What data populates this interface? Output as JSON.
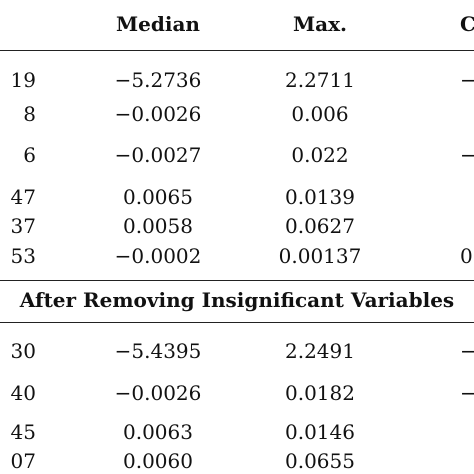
{
  "table": {
    "headers": {
      "median": "Median",
      "max": "Max.",
      "right_partial": "C"
    },
    "section1_rows": [
      {
        "left": "19",
        "median": "−5.2736",
        "max": "2.2711",
        "right": "−"
      },
      {
        "left": "8",
        "median": "−0.0026",
        "max": "0.006",
        "right": ""
      },
      {
        "left": "6",
        "median": "−0.0027",
        "max": "0.022",
        "right": "−"
      },
      {
        "left": "47",
        "median": "0.0065",
        "max": "0.0139",
        "right": ""
      },
      {
        "left": "37",
        "median": "0.0058",
        "max": "0.0627",
        "right": ""
      },
      {
        "left": "53",
        "median": "−0.0002",
        "max": "0.00137",
        "right": "0"
      }
    ],
    "section2_title": "After Removing Insignificant Variables",
    "section2_rows": [
      {
        "left": "30",
        "median": "−5.4395",
        "max": "2.2491",
        "right": "−"
      },
      {
        "left": "40",
        "median": "−0.0026",
        "max": "0.0182",
        "right": "−"
      },
      {
        "left": "45",
        "median": "0.0063",
        "max": "0.0146",
        "right": ""
      },
      {
        "left": "07",
        "median": "0.0060",
        "max": "0.0655",
        "right": ""
      }
    ]
  }
}
